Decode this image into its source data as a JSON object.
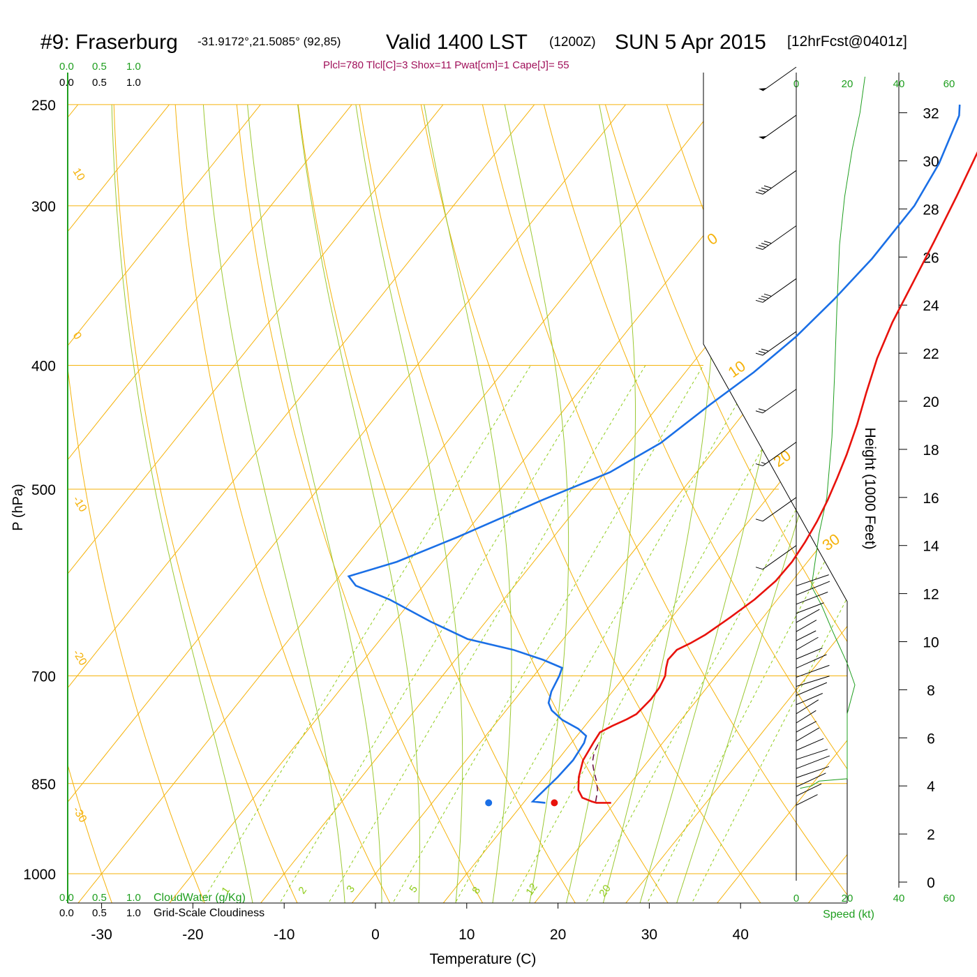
{
  "header": {
    "station": "#9: Fraserburg",
    "coords": "-31.9172°,21.5085° (92,85)",
    "valid": "Valid 1400 LST",
    "zulu": "(1200Z)",
    "date": "SUN 5 Apr 2015",
    "fcst": "[12hrFcst@0401z]"
  },
  "indices": "Plcl=780 Tlcl[C]=3 Shox=11 Pwat[cm]=1 Cape[J]= 55",
  "colors": {
    "temperature": "#e8120c",
    "dewpoint": "#1a6fe6",
    "isobar": "#f5b20a",
    "mixing_ratio": "#8fcc1a",
    "moist_adiabat": "#9bc832",
    "cloud_axis": "#1e9e1e",
    "parcel": "#6a1444",
    "indices_text": "#a0105a"
  },
  "scales": {
    "cloud_green": [
      "0.0",
      "0.5",
      "1.0"
    ],
    "cloud_black": [
      "0.0",
      "0.5",
      "1.0"
    ],
    "cloud_water_label": "CloudWater (g/Kg)",
    "grid_cloud_label": "Grid-Scale Cloudiness",
    "speed_ticks": [
      "0",
      "20",
      "40",
      "60"
    ],
    "speed_label": "Speed (kt)",
    "height_label": "Height (1000 Feet)"
  },
  "chart_data": {
    "type": "line",
    "xlabel": "Temperature (C)",
    "ylabel": "P (hPa)",
    "x_ticks": [
      -30,
      -20,
      -10,
      0,
      10,
      20,
      30,
      40
    ],
    "y_ticks": [
      250,
      300,
      400,
      500,
      700,
      850,
      1000
    ],
    "xlim": [
      -33.5,
      36
    ],
    "ylim": [
      1070,
      250
    ],
    "height_ticks_kft": [
      0,
      2,
      4,
      6,
      8,
      10,
      12,
      14,
      16,
      18,
      20,
      22,
      24,
      26,
      28,
      30,
      32
    ],
    "dry_adiabat_labels": [
      "10",
      "0",
      "-10",
      "-20",
      "-30"
    ],
    "dry_adiabat_labels_right": [
      "0",
      "10",
      "20",
      "30"
    ],
    "mixing_ratio_labels": [
      "1",
      "2",
      "3",
      "5",
      "8",
      "12",
      "20"
    ],
    "series": [
      {
        "name": "temperature",
        "points": [
          [
            19.6,
            880
          ],
          [
            18.0,
            880
          ],
          [
            17.4,
            878
          ],
          [
            16.0,
            872
          ],
          [
            14.9,
            860
          ],
          [
            13.8,
            840
          ],
          [
            12.8,
            815
          ],
          [
            12.4,
            790
          ],
          [
            12.2,
            775
          ],
          [
            13.0,
            766
          ],
          [
            14.0,
            757
          ],
          [
            14.6,
            750
          ],
          [
            14.9,
            730
          ],
          [
            14.8,
            715
          ],
          [
            14.4,
            700
          ],
          [
            13.8,
            690
          ],
          [
            13.3,
            680
          ],
          [
            13.4,
            668
          ],
          [
            14.3,
            660
          ],
          [
            15.2,
            650
          ],
          [
            16.4,
            630
          ],
          [
            17.5,
            610
          ],
          [
            18.2,
            590
          ],
          [
            18.3,
            570
          ],
          [
            18.0,
            550
          ],
          [
            17.5,
            530
          ],
          [
            16.8,
            510
          ],
          [
            15.9,
            490
          ],
          [
            14.9,
            470
          ],
          [
            13.4,
            445
          ],
          [
            11.6,
            420
          ],
          [
            9.8,
            395
          ],
          [
            8.3,
            370
          ],
          [
            7.1,
            345
          ],
          [
            5.8,
            320
          ],
          [
            4.3,
            295
          ],
          [
            2.7,
            272
          ],
          [
            0.8,
            250
          ]
        ]
      },
      {
        "name": "dewpoint",
        "points": [
          [
            12.4,
            880
          ],
          [
            10.9,
            878
          ],
          [
            11.0,
            870
          ],
          [
            11.5,
            840
          ],
          [
            11.7,
            815
          ],
          [
            11.4,
            790
          ],
          [
            11.0,
            780
          ],
          [
            9.5,
            770
          ],
          [
            7.0,
            758
          ],
          [
            5.0,
            745
          ],
          [
            4.0,
            735
          ],
          [
            3.3,
            720
          ],
          [
            2.8,
            700
          ],
          [
            2.4,
            690
          ],
          [
            -0.4,
            680
          ],
          [
            -4.5,
            668
          ],
          [
            -10.5,
            655
          ],
          [
            -16.0,
            635
          ],
          [
            -22.5,
            610
          ],
          [
            -27.4,
            595
          ],
          [
            -29.0,
            585
          ],
          [
            -25.0,
            570
          ],
          [
            -20.5,
            545
          ],
          [
            -14.5,
            510
          ],
          [
            -9.5,
            485
          ],
          [
            -6.5,
            460
          ],
          [
            -4.5,
            430
          ],
          [
            -2.5,
            405
          ],
          [
            -1.0,
            380
          ],
          [
            -0.1,
            355
          ],
          [
            0.5,
            330
          ],
          [
            0.5,
            300
          ],
          [
            -0.5,
            278
          ],
          [
            -2.5,
            255
          ],
          [
            -3.4,
            250
          ]
        ]
      },
      {
        "name": "parcel",
        "points": [
          [
            17.8,
            878
          ],
          [
            17.0,
            860
          ],
          [
            16.0,
            845
          ],
          [
            15.0,
            832
          ],
          [
            14.0,
            818
          ],
          [
            13.3,
            803
          ],
          [
            13.0,
            790
          ]
        ]
      }
    ],
    "surface_temperature_marker": [
      19.6,
      880
    ],
    "surface_dewpoint_marker": [
      12.4,
      880
    ],
    "wind_barbs_kt": [
      {
        "height_kft": 33.9,
        "speed": 50
      },
      {
        "height_kft": 31.9,
        "speed": 50
      },
      {
        "height_kft": 29.6,
        "speed": 40
      },
      {
        "height_kft": 27.3,
        "speed": 40
      },
      {
        "height_kft": 25.1,
        "speed": 40
      },
      {
        "height_kft": 22.9,
        "speed": 30
      },
      {
        "height_kft": 20.5,
        "speed": 20
      },
      {
        "height_kft": 18.3,
        "speed": 15
      },
      {
        "height_kft": 16.0,
        "speed": 10
      },
      {
        "height_kft": 14.0,
        "speed": 10
      }
    ],
    "wind_speed_profile": [
      [
        1.5,
        3.9
      ],
      [
        6,
        4.0
      ],
      [
        9,
        4.2
      ],
      [
        20,
        4.3
      ],
      [
        20,
        7.0
      ],
      [
        22,
        7.8
      ],
      [
        23,
        8.2
      ],
      [
        20,
        9.1
      ],
      [
        14,
        10.5
      ],
      [
        10,
        11.5
      ],
      [
        6,
        12.3
      ],
      [
        9,
        14.5
      ],
      [
        12,
        16.0
      ],
      [
        14,
        18.5
      ],
      [
        15,
        21.0
      ],
      [
        16,
        24.0
      ],
      [
        17,
        26.5
      ],
      [
        19,
        28.5
      ],
      [
        22,
        30.5
      ],
      [
        25,
        32.0
      ],
      [
        27,
        33.5
      ]
    ]
  }
}
